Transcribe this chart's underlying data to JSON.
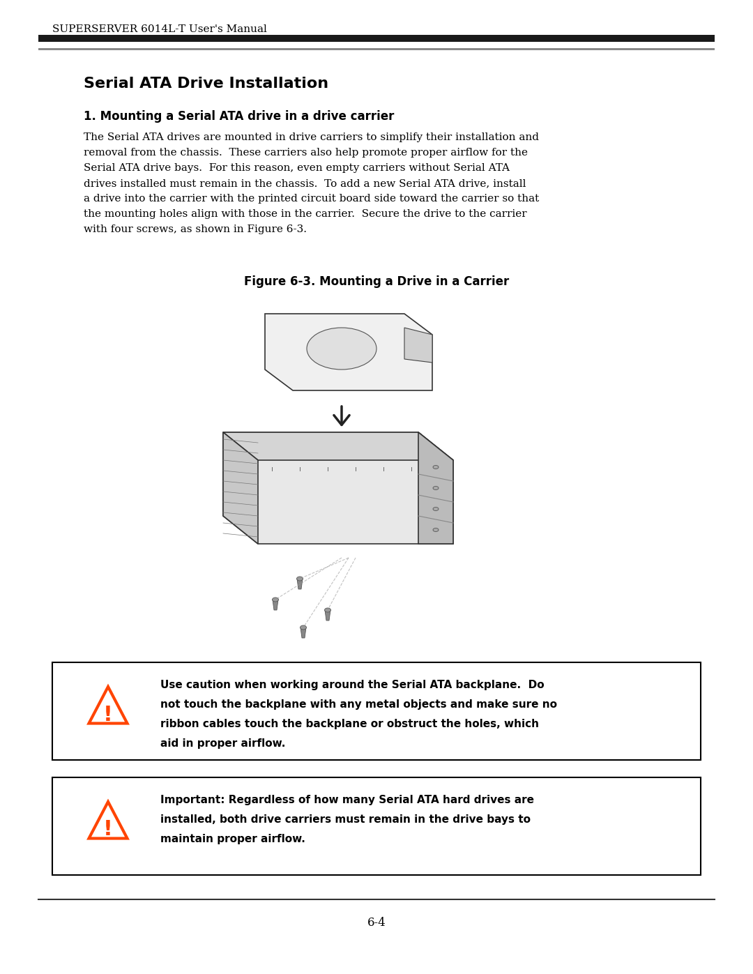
{
  "page_title": "SUPERSERVER 6014L-T User's Manual",
  "section_title": "Serial ATA Drive Installation",
  "subsection": "1. Mounting a Serial ATA drive in a drive carrier",
  "body_text": "The Serial ATA drives are mounted in drive carriers to simplify their installation and\nremoval from the chassis.  These carriers also help promote proper airflow for the\nSerial ATA drive bays.  For this reason, even empty carriers without Serial ATA\ndrives installed must remain in the chassis.  To add a new Serial ATA drive, install\na drive into the carrier with the printed circuit board side toward the carrier so that\nthe mounting holes align with those in the carrier.  Secure the drive to the carrier\nwith four screws, as shown in Figure 6-3.",
  "figure_caption": "Figure 6-3. Mounting a Drive in a Carrier",
  "warning1": "Use caution when working around the Serial ATA backplane.  Do\nnot touch the backplane with any metal objects and make sure no\nribbon cables touch the backplane or obstruct the holes, which\naid in proper airflow.",
  "warning2": "Important: Regardless of how many Serial ATA hard drives are\ninstalled, both drive carriers must remain in the drive bays to\nmaintain proper airflow.",
  "page_number": "6-4",
  "bg_color": "#ffffff",
  "text_color": "#000000",
  "header_bar_color": "#1a1a1a",
  "warning_border_color": "#000000",
  "warning_triangle_color": "#ff4400",
  "warning_exclaim_color": "#ff4400"
}
